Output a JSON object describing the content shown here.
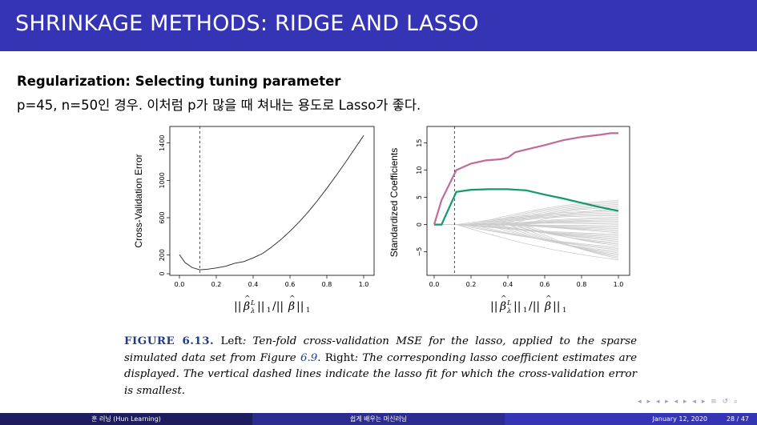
{
  "slide": {
    "title": "SHRINKAGE METHODS: RIDGE AND LASSO",
    "heading": "Regularization: Selecting tuning parameter",
    "intro": "p=45, n=50인 경우. 이처럼 p가 많을 때 쳐내는 용도로 Lasso가 좋다."
  },
  "caption": {
    "lead": "FIGURE 6.13.",
    "part1": " Left",
    "part2": ": Ten-fold cross-validation MSE for the lasso, applied to the sparse simulated data set from Figure ",
    "ref": "6.9",
    "part3": ". Right",
    "part4": ": The corresponding lasso coefficient estimates are displayed. The vertical dashed lines indicate the lasso fit for which the cross-validation error is smallest."
  },
  "footer": {
    "author": "훈 러닝 (Hun Learning)",
    "course": "쉽게 배우는 머신러닝",
    "date": "January 12, 2020",
    "page": "28 / 47",
    "nav_symbols": "◂ ▸ ◂ ▸ ◂ ▸ ◂ ▸ ≡ ↺ ⌕"
  },
  "colors": {
    "title_bar": "#3434b4",
    "footer_left": "#1c1c5e",
    "footer_mid": "#2b2b90",
    "footer_right": "#3434b4",
    "pink_series": "#c46a98",
    "green_series": "#119a6b",
    "gray_series": "#cccccc"
  },
  "chart_data": [
    {
      "type": "line",
      "title": "",
      "xlabel": "||β̂λL||1/||β̂||1",
      "ylabel": "Cross-Validation Error",
      "xlim": [
        0,
        1
      ],
      "ylim": [
        0,
        1500
      ],
      "xticks": [
        "0.0",
        "0.2",
        "0.4",
        "0.6",
        "0.8",
        "1.0"
      ],
      "yticks": [
        "0",
        "200",
        "600",
        "1000",
        "1400"
      ],
      "dashed_vline_x": 0.11,
      "series": [
        {
          "name": "cv-error",
          "x": [
            0.0,
            0.03,
            0.07,
            0.11,
            0.15,
            0.2,
            0.25,
            0.3,
            0.35,
            0.4,
            0.45,
            0.5,
            0.55,
            0.6,
            0.65,
            0.7,
            0.75,
            0.8,
            0.85,
            0.9,
            0.95,
            1.0
          ],
          "values": [
            205,
            120,
            65,
            42,
            48,
            62,
            80,
            112,
            130,
            170,
            215,
            285,
            365,
            455,
            555,
            665,
            785,
            915,
            1050,
            1190,
            1335,
            1480
          ]
        }
      ]
    },
    {
      "type": "line",
      "title": "",
      "xlabel": "||β̂λL||1/||β̂||1",
      "ylabel": "Standardized Coefficients",
      "xlim": [
        0,
        1
      ],
      "ylim": [
        -8,
        17
      ],
      "xticks": [
        "0.0",
        "0.2",
        "0.4",
        "0.6",
        "0.8",
        "1.0"
      ],
      "yticks": [
        "−5",
        "0",
        "5",
        "10",
        "15"
      ],
      "dashed_vline_x": 0.11,
      "series": [
        {
          "name": "pink-coefficient",
          "x": [
            0.0,
            0.04,
            0.12,
            0.2,
            0.28,
            0.36,
            0.4,
            0.44,
            0.5,
            0.6,
            0.7,
            0.8,
            0.9,
            0.96,
            1.0
          ],
          "values": [
            0,
            4.5,
            10,
            11.2,
            11.8,
            12,
            12.3,
            13.3,
            13.8,
            14.6,
            15.5,
            16.1,
            16.5,
            16.8,
            16.8
          ]
        },
        {
          "name": "green-coefficient",
          "x": [
            0.0,
            0.04,
            0.12,
            0.2,
            0.3,
            0.4,
            0.5,
            0.6,
            0.7,
            0.8,
            0.9,
            1.0
          ],
          "values": [
            0,
            0,
            6,
            6.4,
            6.5,
            6.5,
            6.3,
            5.5,
            4.8,
            4.0,
            3.2,
            2.5
          ]
        }
      ],
      "background_series_count": 43,
      "background_series_range_at_x1": [
        -6.5,
        4.5
      ]
    }
  ]
}
